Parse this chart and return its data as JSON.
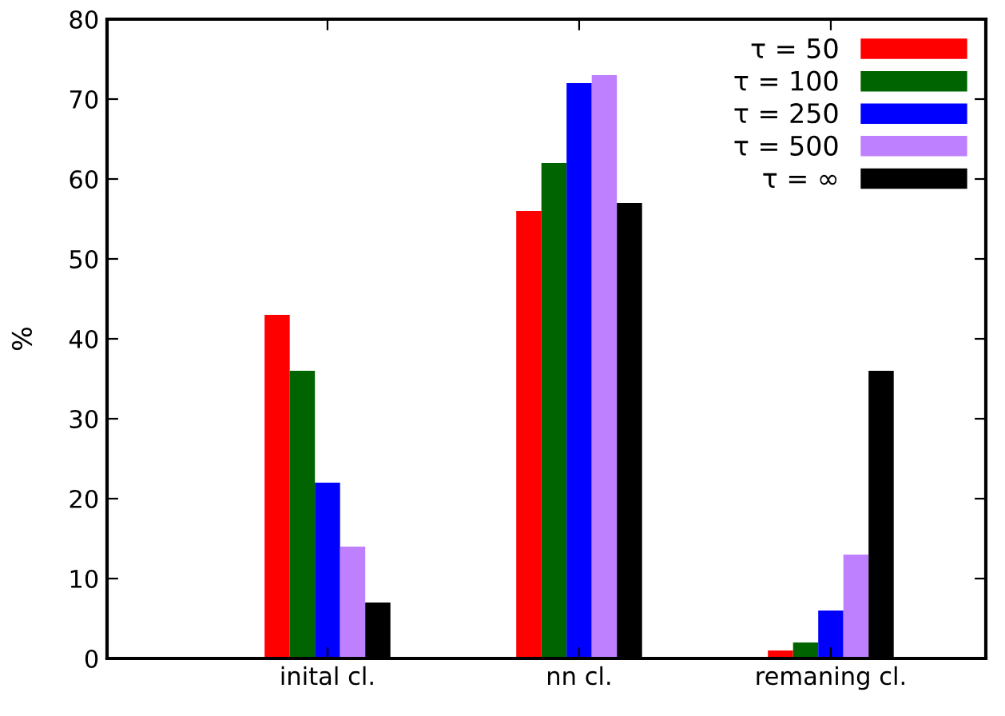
{
  "chart_data": {
    "type": "bar",
    "ylabel": "%",
    "categories": [
      "inital cl.",
      "nn cl.",
      "remaning cl."
    ],
    "series": [
      {
        "name": "τ = 50",
        "color": "#ff0000",
        "values": [
          43,
          56,
          1
        ]
      },
      {
        "name": "τ = 100",
        "color": "#006400",
        "values": [
          36,
          62,
          2
        ]
      },
      {
        "name": "τ = 250",
        "color": "#0000ff",
        "values": [
          22,
          72,
          6
        ]
      },
      {
        "name": "τ = 500",
        "color": "#bf80ff",
        "values": [
          14,
          73,
          13
        ]
      },
      {
        "name": "τ = ∞",
        "color": "#000000",
        "values": [
          7,
          57,
          36
        ]
      }
    ],
    "ylim": [
      0,
      80
    ],
    "yticks": [
      0,
      10,
      20,
      30,
      40,
      50,
      60,
      70,
      80
    ],
    "grid": false,
    "legend": "top right"
  }
}
